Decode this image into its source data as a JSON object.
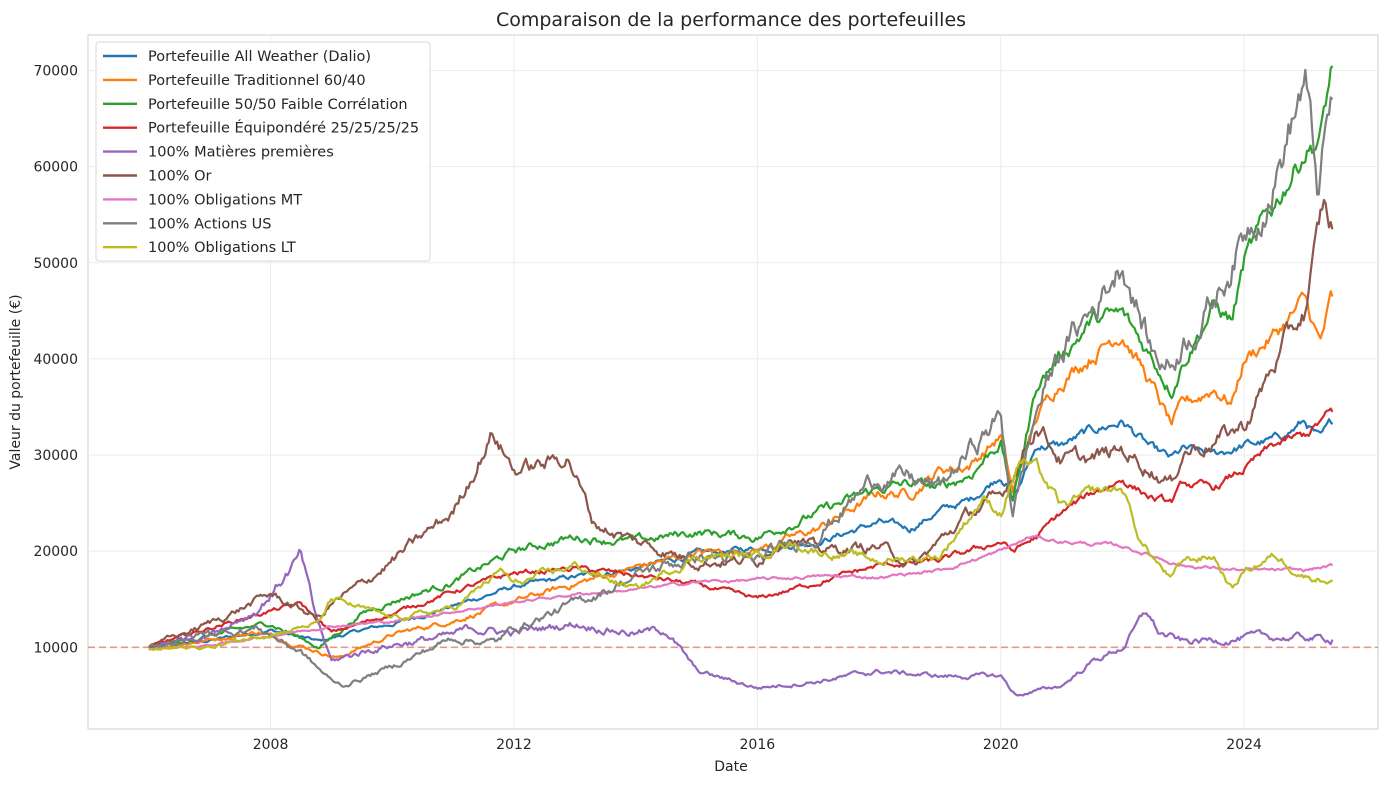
{
  "chart_data": {
    "type": "line",
    "title": "Comparaison de la performance des portefeuilles",
    "xlabel": "Date",
    "ylabel": "Valeur du portefeuille (€)",
    "xlim": [
      2005.0,
      2026.2
    ],
    "ylim": [
      1500,
      73700
    ],
    "x_ticks": [
      2008,
      2012,
      2016,
      2020,
      2024
    ],
    "x_tick_labels": [
      "2008",
      "2012",
      "2016",
      "2020",
      "2024"
    ],
    "y_ticks": [
      10000,
      20000,
      30000,
      40000,
      50000,
      60000,
      70000
    ],
    "y_tick_labels": [
      "10000",
      "20000",
      "30000",
      "40000",
      "50000",
      "60000",
      "70000"
    ],
    "grid": true,
    "legend_position": "top-left",
    "reference_line": {
      "value": 10000,
      "color": "#e8958a",
      "style": "dashed"
    },
    "series": [
      {
        "name": "Portefeuille All Weather (Dalio)",
        "color": "#1f77b4",
        "x": [
          2006.0,
          2007.0,
          2008.0,
          2008.8,
          2009.5,
          2010.0,
          2011.0,
          2012.0,
          2013.0,
          2014.0,
          2015.0,
          2016.0,
          2017.0,
          2018.0,
          2018.5,
          2019.0,
          2019.5,
          2020.0,
          2020.25,
          2020.6,
          2021.0,
          2021.5,
          2022.0,
          2022.5,
          2022.8,
          2023.0,
          2023.5,
          2024.0,
          2024.5,
          2025.0,
          2025.25,
          2025.45
        ],
        "y": [
          9900,
          10700,
          11800,
          10600,
          11800,
          12400,
          14300,
          16300,
          17300,
          18200,
          19700,
          20300,
          21000,
          23000,
          22300,
          24200,
          25300,
          28000,
          26000,
          31000,
          31000,
          32500,
          33500,
          30500,
          29500,
          30500,
          30000,
          31000,
          31500,
          33500,
          31500,
          33200
        ]
      },
      {
        "name": "Portefeuille Traditionnel 60/40",
        "color": "#ff7f0e",
        "x": [
          2006.0,
          2007.0,
          2007.8,
          2008.5,
          2009.1,
          2009.5,
          2010.0,
          2011.0,
          2012.0,
          2013.0,
          2014.0,
          2015.0,
          2016.0,
          2017.0,
          2018.0,
          2018.5,
          2019.0,
          2019.5,
          2020.0,
          2020.2,
          2020.6,
          2021.0,
          2021.5,
          2022.0,
          2022.5,
          2022.8,
          2023.0,
          2023.5,
          2023.8,
          2024.0,
          2024.5,
          2025.0,
          2025.25,
          2025.45
        ],
        "y": [
          9900,
          10800,
          11600,
          10200,
          8900,
          10000,
          11300,
          12800,
          14700,
          16600,
          18300,
          19800,
          20200,
          22300,
          26000,
          26000,
          28500,
          29000,
          32000,
          26000,
          34000,
          38000,
          40500,
          43000,
          37000,
          33000,
          35000,
          37000,
          35500,
          40000,
          42500,
          46000,
          41500,
          46500
        ]
      },
      {
        "name": "Portefeuille 50/50 Faible Corrélation",
        "color": "#2ca02c",
        "x": [
          2006.0,
          2007.0,
          2008.0,
          2008.8,
          2009.5,
          2010.0,
          2011.0,
          2012.0,
          2013.0,
          2014.0,
          2015.0,
          2016.0,
          2017.0,
          2018.0,
          2018.5,
          2019.0,
          2019.5,
          2020.0,
          2020.2,
          2020.6,
          2021.0,
          2021.5,
          2022.0,
          2022.5,
          2022.8,
          2023.0,
          2023.5,
          2023.8,
          2024.0,
          2024.5,
          2025.0,
          2025.25,
          2025.45
        ],
        "y": [
          10000,
          11200,
          12500,
          10000,
          13500,
          14800,
          16800,
          20000,
          21500,
          21000,
          22000,
          21500,
          24000,
          26500,
          27000,
          26500,
          28000,
          31500,
          25000,
          37500,
          40500,
          44000,
          44500,
          40000,
          37000,
          40000,
          45500,
          44000,
          50000,
          56000,
          62000,
          63000,
          70500
        ]
      },
      {
        "name": "Portefeuille Équipondéré 25/25/25/25",
        "color": "#d62728",
        "x": [
          2006.0,
          2007.0,
          2008.0,
          2008.5,
          2009.0,
          2010.0,
          2011.0,
          2012.0,
          2013.0,
          2014.0,
          2015.0,
          2016.0,
          2017.0,
          2018.0,
          2019.0,
          2020.0,
          2020.2,
          2020.6,
          2021.0,
          2021.5,
          2022.0,
          2022.5,
          2022.8,
          2023.0,
          2023.5,
          2024.0,
          2024.5,
          2025.0,
          2025.45
        ],
        "y": [
          10000,
          12000,
          13800,
          14500,
          11500,
          13500,
          15800,
          17700,
          18200,
          17500,
          16500,
          15000,
          16800,
          18500,
          19000,
          21000,
          20000,
          21500,
          24000,
          26000,
          27500,
          25500,
          25000,
          27000,
          26500,
          28500,
          31000,
          32000,
          34500
        ]
      },
      {
        "name": "100% Matières premières",
        "color": "#9467bd",
        "x": [
          2006.0,
          2007.0,
          2007.8,
          2008.5,
          2008.7,
          2009.0,
          2009.5,
          2010.0,
          2011.0,
          2011.3,
          2012.0,
          2013.0,
          2014.0,
          2014.5,
          2015.0,
          2016.0,
          2017.0,
          2018.0,
          2019.0,
          2020.0,
          2020.25,
          2021.0,
          2021.5,
          2022.0,
          2022.4,
          2022.6,
          2023.0,
          2024.0,
          2025.0,
          2025.45
        ],
        "y": [
          10000,
          11500,
          14000,
          19500,
          14000,
          8500,
          9500,
          10300,
          11200,
          12000,
          11500,
          12500,
          11500,
          11800,
          7500,
          5800,
          6500,
          7500,
          7000,
          7000,
          5000,
          6000,
          8500,
          10000,
          13700,
          11500,
          10500,
          11000,
          11000,
          10800
        ]
      },
      {
        "name": "100% Or",
        "color": "#8c564b",
        "x": [
          2006.0,
          2007.0,
          2008.0,
          2008.8,
          2009.0,
          2009.5,
          2010.0,
          2011.0,
          2011.65,
          2012.0,
          2012.5,
          2012.9,
          2013.3,
          2014.0,
          2015.0,
          2016.0,
          2016.5,
          2017.0,
          2018.0,
          2018.6,
          2019.0,
          2019.5,
          2020.0,
          2020.6,
          2021.0,
          2021.5,
          2022.0,
          2022.5,
          2022.8,
          2023.0,
          2023.5,
          2024.0,
          2024.5,
          2025.0,
          2025.3,
          2025.45
        ],
        "y": [
          10000,
          12500,
          15500,
          13000,
          14500,
          16500,
          19000,
          24000,
          32500,
          28500,
          29000,
          30000,
          23000,
          21000,
          19000,
          19000,
          22000,
          20000,
          20500,
          18500,
          21000,
          24000,
          25500,
          33500,
          29500,
          29500,
          30500,
          28500,
          27000,
          30500,
          31500,
          33000,
          39500,
          45000,
          55500,
          53500
        ]
      },
      {
        "name": "100% Obligations MT",
        "color": "#e377c2",
        "x": [
          2006.0,
          2007.0,
          2008.0,
          2009.0,
          2010.0,
          2011.0,
          2012.0,
          2013.0,
          2014.0,
          2015.0,
          2016.0,
          2017.0,
          2018.0,
          2019.0,
          2020.0,
          2020.5,
          2021.0,
          2022.0,
          2022.5,
          2023.0,
          2024.0,
          2025.0,
          2025.45
        ],
        "y": [
          9800,
          10200,
          11200,
          12200,
          12700,
          13700,
          14700,
          15500,
          16000,
          16800,
          17000,
          17400,
          17300,
          18000,
          20000,
          21500,
          21000,
          20500,
          19500,
          18500,
          18000,
          18000,
          18500
        ]
      },
      {
        "name": "100% Actions US",
        "color": "#7f7f7f",
        "x": [
          2006.0,
          2007.0,
          2007.8,
          2008.5,
          2009.0,
          2009.2,
          2010.0,
          2011.0,
          2011.7,
          2012.0,
          2013.0,
          2014.0,
          2015.0,
          2016.0,
          2017.0,
          2018.0,
          2018.5,
          2019.0,
          2019.5,
          2020.0,
          2020.2,
          2020.6,
          2021.0,
          2021.5,
          2022.0,
          2022.5,
          2022.8,
          2023.0,
          2023.5,
          2024.0,
          2024.5,
          2025.0,
          2025.2,
          2025.45
        ],
        "y": [
          10000,
          11500,
          12000,
          9500,
          6500,
          6000,
          8000,
          11000,
          10500,
          12000,
          14500,
          17500,
          19500,
          19000,
          22000,
          28000,
          27500,
          26500,
          30500,
          34000,
          24000,
          35000,
          41000,
          45000,
          50500,
          40500,
          39500,
          42000,
          46000,
          53000,
          59000,
          69000,
          57500,
          67000
        ]
      },
      {
        "name": "100% Obligations LT",
        "color": "#bcbd22",
        "x": [
          2006.0,
          2007.0,
          2008.0,
          2008.8,
          2009.0,
          2010.0,
          2011.0,
          2011.8,
          2012.0,
          2012.5,
          2013.0,
          2014.0,
          2015.0,
          2016.0,
          2016.5,
          2017.0,
          2018.0,
          2019.0,
          2019.7,
          2020.0,
          2020.3,
          2020.6,
          2021.0,
          2021.5,
          2022.0,
          2022.3,
          2022.8,
          2023.0,
          2023.5,
          2023.8,
          2024.0,
          2024.5,
          2025.0,
          2025.45
        ],
        "y": [
          9800,
          10000,
          11500,
          12500,
          15000,
          13000,
          14000,
          18000,
          16500,
          17500,
          18500,
          16000,
          19500,
          19500,
          21000,
          20000,
          19000,
          19500,
          25500,
          24000,
          29500,
          28500,
          24500,
          26000,
          26500,
          21000,
          17000,
          19000,
          19500,
          16000,
          18000,
          19500,
          17500,
          17000
        ]
      }
    ]
  }
}
